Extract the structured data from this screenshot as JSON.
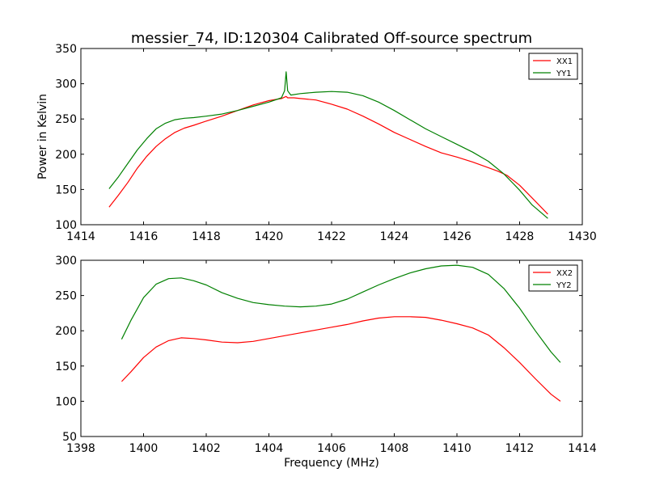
{
  "title": "messier_74, ID:120304 Calibrated Off-source spectrum",
  "colors": {
    "series_red": "#ff0000",
    "series_green": "#008000",
    "axes": "#000000",
    "background": "#ffffff"
  },
  "chart_data": [
    {
      "type": "line",
      "title": "messier_74, ID:120304 Calibrated Off-source spectrum",
      "xlabel": "",
      "ylabel": "Power in Kelvin",
      "xlim": [
        1414,
        1430
      ],
      "ylim": [
        100,
        350
      ],
      "xticks": [
        "1414",
        "1416",
        "1418",
        "1420",
        "1422",
        "1424",
        "1426",
        "1428",
        "1430"
      ],
      "yticks": [
        "100",
        "150",
        "200",
        "250",
        "300",
        "350"
      ],
      "grid": false,
      "legend_position": "top-right",
      "series": [
        {
          "name": "XX1",
          "color": "#ff0000",
          "x": [
            1414.9,
            1415.2,
            1415.5,
            1415.8,
            1416.1,
            1416.4,
            1416.7,
            1417.0,
            1417.3,
            1417.6,
            1418.0,
            1418.5,
            1419.0,
            1419.5,
            1420.0,
            1420.4,
            1420.55,
            1420.6,
            1420.8,
            1421.0,
            1421.5,
            1422.0,
            1422.5,
            1423.0,
            1423.5,
            1424.0,
            1424.5,
            1425.0,
            1425.5,
            1426.0,
            1426.5,
            1427.0,
            1427.3,
            1427.6,
            1428.0,
            1428.4,
            1428.9
          ],
          "y": [
            125,
            142,
            160,
            180,
            197,
            211,
            222,
            231,
            237,
            241,
            247,
            254,
            262,
            270,
            276,
            279,
            282,
            280,
            280,
            279,
            277,
            271,
            264,
            254,
            243,
            231,
            221,
            211,
            202,
            196,
            189,
            181,
            176,
            170,
            156,
            138,
            115
          ]
        },
        {
          "name": "YY1",
          "color": "#008000",
          "x": [
            1414.9,
            1415.2,
            1415.5,
            1415.8,
            1416.1,
            1416.4,
            1416.7,
            1417.0,
            1417.3,
            1417.6,
            1418.0,
            1418.5,
            1419.0,
            1419.5,
            1420.0,
            1420.4,
            1420.5,
            1420.55,
            1420.6,
            1420.7,
            1421.0,
            1421.5,
            1422.0,
            1422.5,
            1423.0,
            1423.5,
            1424.0,
            1424.5,
            1425.0,
            1425.5,
            1426.0,
            1426.5,
            1427.0,
            1427.5,
            1428.0,
            1428.4,
            1428.9
          ],
          "y": [
            151,
            168,
            187,
            206,
            222,
            236,
            244,
            249,
            251,
            252,
            254,
            257,
            262,
            268,
            274,
            280,
            290,
            317,
            290,
            284,
            286,
            288,
            289,
            288,
            283,
            274,
            262,
            249,
            236,
            225,
            214,
            203,
            190,
            172,
            149,
            128,
            109
          ]
        }
      ]
    },
    {
      "type": "line",
      "title": "",
      "xlabel": "Frequency (MHz)",
      "ylabel": "",
      "xlim": [
        1398,
        1414
      ],
      "ylim": [
        50,
        300
      ],
      "xticks": [
        "1398",
        "1400",
        "1402",
        "1404",
        "1406",
        "1408",
        "1410",
        "1412",
        "1414"
      ],
      "yticks": [
        "50",
        "100",
        "150",
        "200",
        "250",
        "300"
      ],
      "grid": false,
      "legend_position": "top-right",
      "series": [
        {
          "name": "XX2",
          "color": "#ff0000",
          "x": [
            1399.3,
            1399.6,
            1400.0,
            1400.4,
            1400.8,
            1401.2,
            1401.6,
            1402.0,
            1402.5,
            1403.0,
            1403.5,
            1404.0,
            1404.5,
            1405.0,
            1405.5,
            1406.0,
            1406.5,
            1407.0,
            1407.5,
            1408.0,
            1408.5,
            1409.0,
            1409.5,
            1410.0,
            1410.5,
            1411.0,
            1411.5,
            1412.0,
            1412.5,
            1413.0,
            1413.3
          ],
          "y": [
            128,
            142,
            162,
            177,
            186,
            190,
            189,
            187,
            184,
            183,
            185,
            189,
            193,
            197,
            201,
            205,
            209,
            214,
            218,
            220,
            220,
            219,
            215,
            210,
            204,
            194,
            176,
            155,
            132,
            110,
            100
          ]
        },
        {
          "name": "YY2",
          "color": "#008000",
          "x": [
            1399.3,
            1399.6,
            1400.0,
            1400.4,
            1400.8,
            1401.2,
            1401.6,
            1402.0,
            1402.5,
            1403.0,
            1403.5,
            1404.0,
            1404.5,
            1405.0,
            1405.5,
            1406.0,
            1406.5,
            1407.0,
            1407.5,
            1408.0,
            1408.5,
            1409.0,
            1409.5,
            1410.0,
            1410.5,
            1411.0,
            1411.5,
            1412.0,
            1412.5,
            1413.0,
            1413.3
          ],
          "y": [
            188,
            215,
            247,
            266,
            274,
            275,
            271,
            265,
            254,
            246,
            240,
            237,
            235,
            234,
            235,
            238,
            245,
            255,
            265,
            274,
            282,
            288,
            292,
            293,
            290,
            280,
            260,
            232,
            200,
            170,
            155
          ]
        }
      ]
    }
  ]
}
